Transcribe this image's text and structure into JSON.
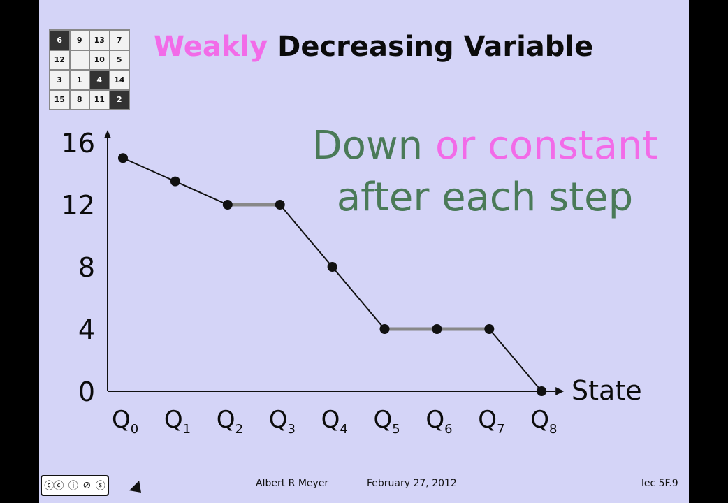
{
  "slide": {
    "title_word_1": "Weakly",
    "title_rest": "Decreasing Variable",
    "callout_line1_a": "Down ",
    "callout_line1_b": "or constant",
    "callout_line2": "after each step"
  },
  "puzzle": {
    "cells": [
      {
        "v": "6",
        "dark": true
      },
      {
        "v": "9",
        "dark": false
      },
      {
        "v": "13",
        "dark": false
      },
      {
        "v": "7",
        "dark": false
      },
      {
        "v": "12",
        "dark": false
      },
      {
        "v": "",
        "dark": false
      },
      {
        "v": "10",
        "dark": false
      },
      {
        "v": "5",
        "dark": false
      },
      {
        "v": "3",
        "dark": false
      },
      {
        "v": "1",
        "dark": false
      },
      {
        "v": "4",
        "dark": true
      },
      {
        "v": "14",
        "dark": false
      },
      {
        "v": "15",
        "dark": false
      },
      {
        "v": "8",
        "dark": false
      },
      {
        "v": "11",
        "dark": false
      },
      {
        "v": "2",
        "dark": true
      }
    ]
  },
  "footer": {
    "author": "Albert R Meyer",
    "date": "February 27, 2012",
    "lecture": "lec 5F.9",
    "license_icons": [
      "cc-icon",
      "by-icon",
      "nc-icon",
      "sa-icon"
    ],
    "license_label": "BY NC SA"
  },
  "chart_data": {
    "type": "line",
    "xlabel": "State",
    "ylabel": "",
    "title": "",
    "categories": [
      "Q0",
      "Q1",
      "Q2",
      "Q3",
      "Q4",
      "Q5",
      "Q6",
      "Q7",
      "Q8"
    ],
    "category_base": "Q",
    "category_subscripts": [
      "0",
      "1",
      "2",
      "3",
      "4",
      "5",
      "6",
      "7",
      "8"
    ],
    "values": [
      15,
      13.5,
      12,
      12,
      8,
      4,
      4,
      4,
      0
    ],
    "yticks": [
      0,
      4,
      8,
      12,
      16
    ],
    "ylim": [
      0,
      16
    ],
    "constant_segments": [
      [
        2,
        3
      ],
      [
        5,
        6
      ],
      [
        6,
        7
      ]
    ],
    "colors": {
      "line": "#111111",
      "constant": "#888888",
      "point": "#111111"
    },
    "grid": false
  }
}
